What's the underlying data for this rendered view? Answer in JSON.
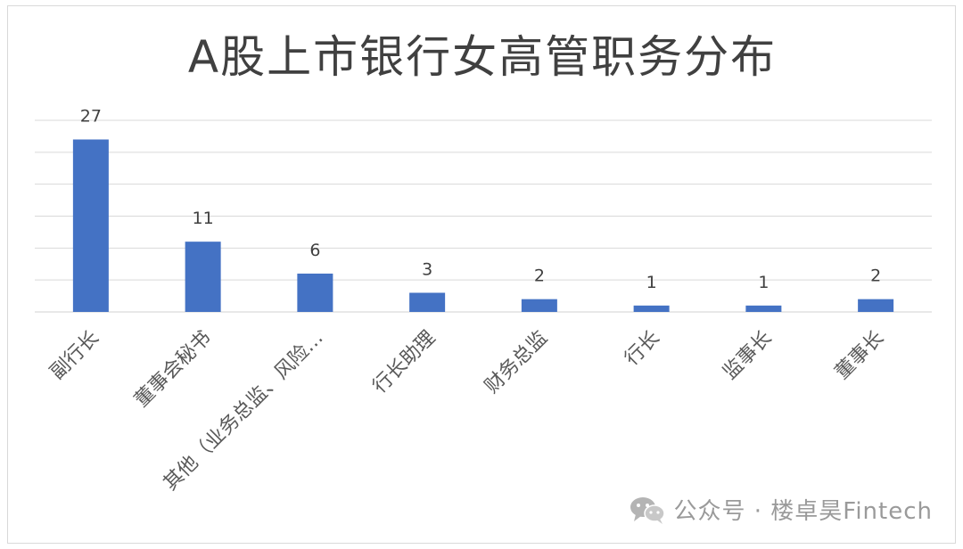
{
  "chart_data": {
    "type": "bar",
    "title": "A股上市银行女高管职务分布",
    "categories": [
      "副行长",
      "董事会秘书",
      "其他（业务总监、风险…",
      "行长助理",
      "财务总监",
      "行长",
      "监事长",
      "董事长"
    ],
    "values": [
      27,
      11,
      6,
      3,
      2,
      1,
      1,
      2
    ],
    "data_labels": [
      "27",
      "11",
      "6",
      "3",
      "2",
      "1",
      "1",
      "2"
    ],
    "ylim": [
      0,
      30
    ],
    "grid": true,
    "bar_color": "#4472C4"
  },
  "watermark": {
    "text": "公众号 · 楼卓昊Fintech",
    "icon": "wechat-icon"
  }
}
